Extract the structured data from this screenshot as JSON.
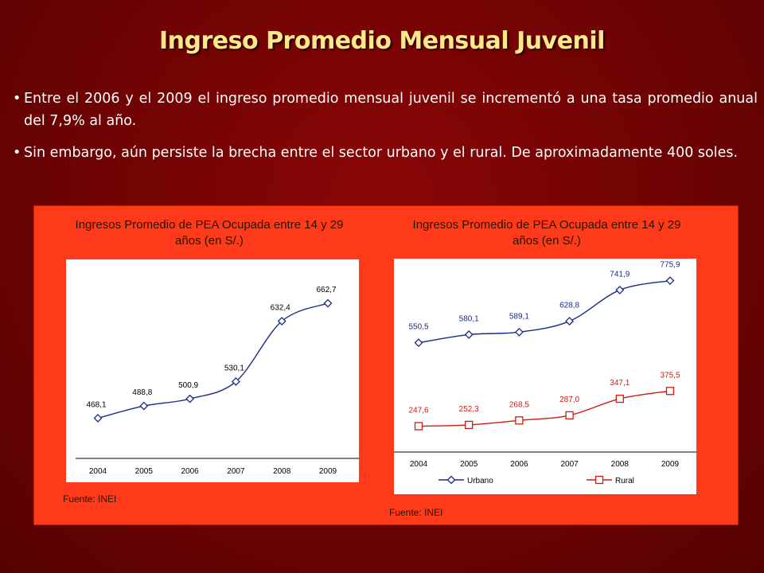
{
  "slide": {
    "title": "Ingreso Promedio Mensual Juvenil",
    "bullets": [
      "Entre el 2006 y el 2009 el ingreso promedio mensual juvenil se incrementó a  una tasa promedio anual  del 7,9% al año.",
      "Sin embargo, aún persiste la brecha entre el sector urbano y el rural. De aproximadamente 400 soles."
    ],
    "bullet_symbol": "•"
  },
  "colors": {
    "panel": "#ff3a1a",
    "title": "#ffe88a",
    "urbano": "#1a2a8a",
    "rural": "#d01a10"
  },
  "charts": [
    {
      "title_line1": "Ingresos Promedio de PEA Ocupada entre 14 y 29",
      "title_line2": "años (en S/.)",
      "source": "Fuente: INEI"
    },
    {
      "title_line1": "Ingresos Promedio de PEA Ocupada entre 14 y 29",
      "title_line2": "años (en S/.)",
      "source": "Fuente: INEI"
    }
  ],
  "chart_data": [
    {
      "type": "line",
      "title": "Ingresos Promedio de PEA Ocupada entre 14 y 29 años (en S/.)",
      "categories": [
        "2004",
        "2005",
        "2006",
        "2007",
        "2008",
        "2009"
      ],
      "values": [
        468.1,
        488.8,
        500.9,
        530.1,
        632.4,
        662.7
      ],
      "labels": [
        "468,1",
        "488,8",
        "500,9",
        "530,1",
        "632,4",
        "662,7"
      ],
      "ylim": [
        400,
        700
      ],
      "grid": false,
      "legend": "none"
    },
    {
      "type": "line",
      "title": "Ingresos Promedio de PEA Ocupada entre 14 y 29 años (en S/.)",
      "categories": [
        "2004",
        "2005",
        "2006",
        "2007",
        "2008",
        "2009"
      ],
      "series": [
        {
          "name": "Urbano",
          "values": [
            550.5,
            580.1,
            589.1,
            628.8,
            741.9,
            775.9
          ],
          "labels": [
            "550,5",
            "580,1",
            "589,1",
            "628,8",
            "741,9",
            "775,9"
          ],
          "color": "#1a2a8a",
          "marker": "diamond"
        },
        {
          "name": "Rural",
          "values": [
            247.6,
            252.3,
            268.5,
            287.0,
            347.1,
            375.5
          ],
          "labels": [
            "247,6",
            "252,3",
            "268,5",
            "287,0",
            "347,1",
            "375,5"
          ],
          "color": "#d01a10",
          "marker": "square"
        }
      ],
      "ylim": [
        200,
        850
      ],
      "grid": false,
      "legend": "bottom"
    }
  ]
}
